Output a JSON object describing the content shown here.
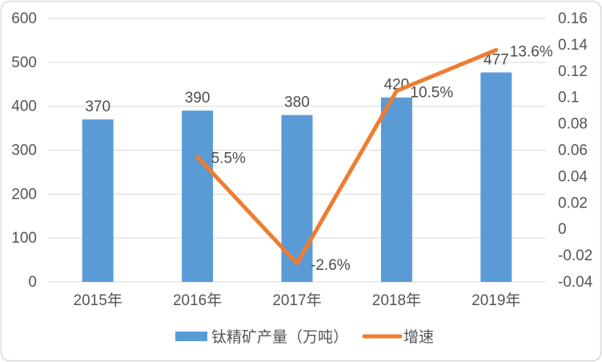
{
  "chart_data": {
    "type": "bar",
    "subtype": "combo-bar-line",
    "title": "",
    "categories": [
      "2015年",
      "2016年",
      "2017年",
      "2018年",
      "2019年"
    ],
    "series": [
      {
        "name": "钛精矿产量（万吨）",
        "chart_type": "bar",
        "axis": "left",
        "color": "#5B9BD5",
        "values": [
          370,
          390,
          380,
          420,
          477
        ],
        "data_labels": [
          "370",
          "390",
          "380",
          "420",
          "477"
        ]
      },
      {
        "name": "增速",
        "chart_type": "line",
        "axis": "right",
        "color": "#ED7D31",
        "values": [
          null,
          0.055,
          -0.026,
          0.105,
          0.136
        ],
        "data_labels": [
          "",
          "5.5%",
          "-2.6%",
          "10.5%",
          "13.6%"
        ]
      }
    ],
    "axes": {
      "left": {
        "min": 0,
        "max": 600,
        "step": 100,
        "tick_labels": [
          "600",
          "500",
          "400",
          "300",
          "200",
          "100",
          "0"
        ]
      },
      "right": {
        "min": -0.04,
        "max": 0.16,
        "step": 0.02,
        "tick_labels": [
          "0.16",
          "0.14",
          "0.12",
          "0.1",
          "0.08",
          "0.06",
          "0.04",
          "0.02",
          "0",
          "-0.02",
          "-0.04"
        ]
      }
    },
    "grid": true,
    "legend_position": "bottom",
    "colors": {
      "bar": "#5B9BD5",
      "line": "#ED7D31",
      "grid": "#D9D9D9",
      "text": "#555555",
      "border": "#D9D9D9",
      "background": "#FFFFFF"
    }
  }
}
